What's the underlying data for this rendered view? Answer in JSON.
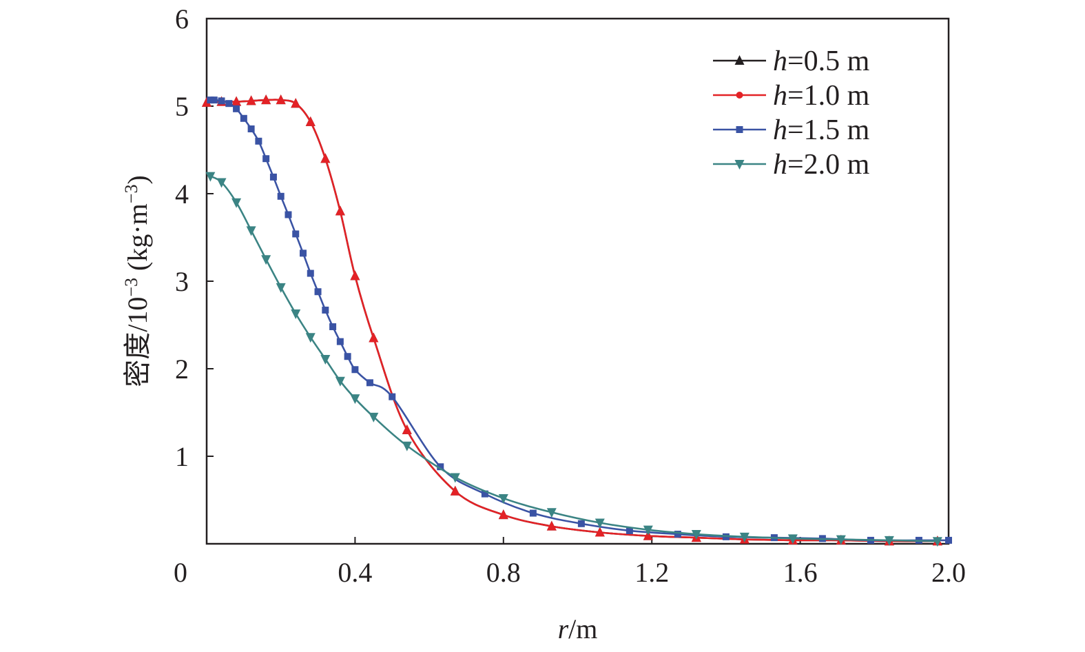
{
  "chart_data": {
    "type": "line",
    "title": "",
    "xlabel_var": "r",
    "xlabel_unit": "/m",
    "ylabel_main": "密度/10",
    "ylabel_exp": "−3",
    "ylabel_unit_open": " (kg·m",
    "ylabel_unit_exp": "−3",
    "ylabel_unit_close": ")",
    "xlim": [
      0,
      2.0
    ],
    "ylim": [
      0,
      6
    ],
    "x_ticks": [
      0,
      0.4,
      0.8,
      1.2,
      1.6,
      2.0
    ],
    "x_tick_labels": [
      "0",
      "0.4",
      "0.8",
      "1.2",
      "1.6",
      "2.0"
    ],
    "y_ticks": [
      1,
      2,
      3,
      4,
      5,
      6
    ],
    "y_tick_labels": [
      "1",
      "2",
      "3",
      "4",
      "5",
      "6"
    ],
    "grid": false,
    "legend_position": "top-right",
    "series": [
      {
        "name": "h=0.5 m",
        "name_var": "h",
        "name_rest": "=0.5 m",
        "color": "#231f20",
        "marker": "triangle-up",
        "x": [
          0.0,
          0.04,
          0.08,
          0.12,
          0.16,
          0.2,
          0.24,
          0.28,
          0.32,
          0.36,
          0.4,
          0.45,
          0.54,
          0.67,
          0.8,
          0.93,
          1.06,
          1.19,
          1.32,
          1.45,
          1.58,
          1.71,
          1.84,
          1.97
        ],
        "y": [
          5.04,
          5.05,
          5.05,
          5.06,
          5.07,
          5.07,
          5.03,
          4.82,
          4.4,
          3.8,
          3.06,
          2.35,
          1.3,
          0.6,
          0.33,
          0.2,
          0.13,
          0.09,
          0.07,
          0.05,
          0.04,
          0.04,
          0.03,
          0.03
        ]
      },
      {
        "name": "h=1.0 m",
        "name_var": "h",
        "name_rest": "=1.0 m",
        "color": "#e32226",
        "marker": "circle",
        "x": [
          0.0,
          0.04,
          0.08,
          0.12,
          0.16,
          0.2,
          0.24,
          0.28,
          0.32,
          0.36,
          0.4,
          0.45,
          0.54,
          0.67,
          0.8,
          0.93,
          1.06,
          1.19,
          1.32,
          1.45,
          1.58,
          1.71,
          1.84,
          1.97
        ],
        "y": [
          5.04,
          5.05,
          5.05,
          5.06,
          5.07,
          5.07,
          5.03,
          4.82,
          4.4,
          3.8,
          3.06,
          2.35,
          1.3,
          0.6,
          0.33,
          0.2,
          0.13,
          0.09,
          0.07,
          0.05,
          0.04,
          0.04,
          0.03,
          0.03
        ]
      },
      {
        "name": "h=1.5 m",
        "name_var": "h",
        "name_rest": "=1.5 m",
        "color": "#3a53a4",
        "marker": "square",
        "x": [
          0.01,
          0.02,
          0.04,
          0.06,
          0.08,
          0.1,
          0.12,
          0.14,
          0.16,
          0.18,
          0.2,
          0.22,
          0.24,
          0.26,
          0.28,
          0.3,
          0.32,
          0.34,
          0.36,
          0.38,
          0.4,
          0.44,
          0.5,
          0.63,
          0.75,
          0.88,
          1.01,
          1.14,
          1.27,
          1.4,
          1.53,
          1.66,
          1.79,
          1.92,
          2.0
        ],
        "y": [
          5.07,
          5.07,
          5.06,
          5.03,
          4.97,
          4.86,
          4.74,
          4.6,
          4.4,
          4.19,
          3.97,
          3.76,
          3.54,
          3.32,
          3.09,
          2.88,
          2.67,
          2.48,
          2.31,
          2.14,
          1.99,
          1.84,
          1.68,
          0.88,
          0.57,
          0.35,
          0.23,
          0.15,
          0.11,
          0.08,
          0.07,
          0.06,
          0.04,
          0.04,
          0.04
        ]
      },
      {
        "name": "h=2.0 m",
        "name_var": "h",
        "name_rest": "=2.0 m",
        "color": "#3b8484",
        "marker": "triangle-down",
        "x": [
          0.01,
          0.04,
          0.08,
          0.12,
          0.16,
          0.2,
          0.24,
          0.28,
          0.32,
          0.36,
          0.4,
          0.45,
          0.54,
          0.67,
          0.8,
          0.93,
          1.06,
          1.19,
          1.32,
          1.45,
          1.58,
          1.71,
          1.84,
          1.97
        ],
        "y": [
          4.2,
          4.13,
          3.9,
          3.58,
          3.25,
          2.93,
          2.63,
          2.36,
          2.11,
          1.86,
          1.66,
          1.45,
          1.12,
          0.76,
          0.52,
          0.36,
          0.24,
          0.16,
          0.11,
          0.08,
          0.06,
          0.05,
          0.04,
          0.03
        ]
      }
    ]
  }
}
